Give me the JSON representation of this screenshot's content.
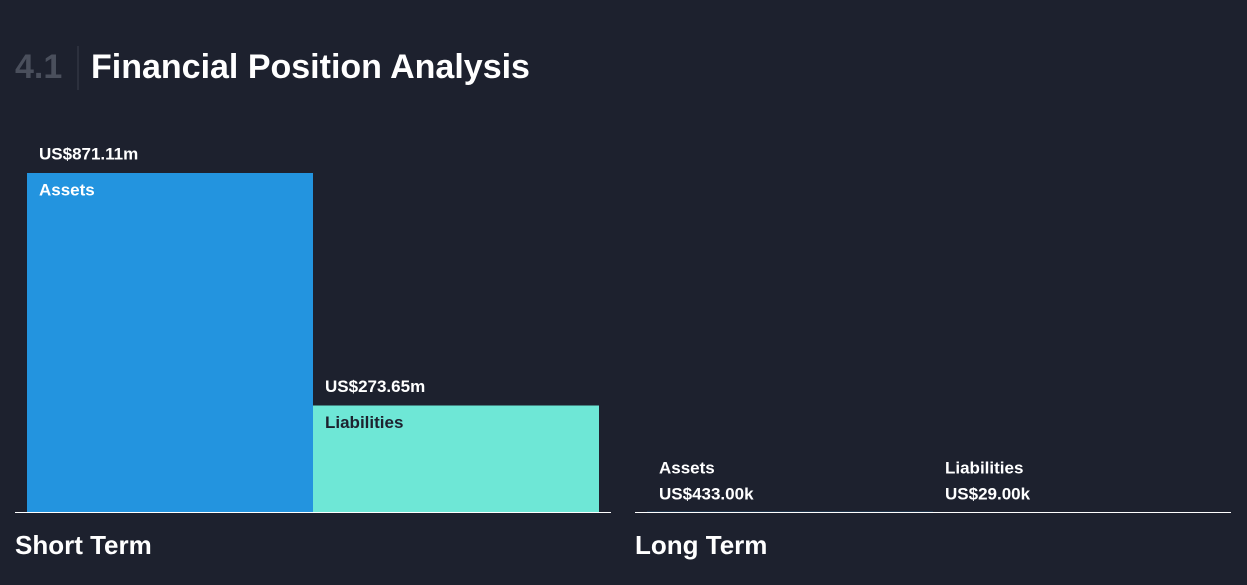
{
  "section_number": "4.1",
  "chart_data": {
    "type": "bar",
    "title": "Financial Position Analysis",
    "categories": [
      "Short Term",
      "Long Term"
    ],
    "series": [
      {
        "name": "Assets",
        "color": "#2394df",
        "values": [
          871.11,
          0.433
        ],
        "value_labels": [
          "US$871.11m",
          "US$433.00k"
        ]
      },
      {
        "name": "Liabilities",
        "color": "#6ee7d6",
        "values": [
          273.65,
          0.029
        ],
        "value_labels": [
          "US$273.65m",
          "US$29.00k"
        ]
      }
    ],
    "ylim": [
      0,
      871.11
    ]
  }
}
